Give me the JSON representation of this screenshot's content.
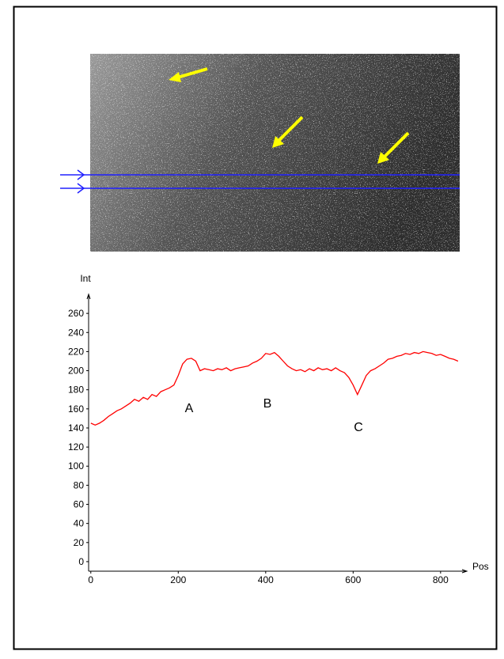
{
  "chart_data": {
    "type": "line",
    "x_label": "Pos",
    "y_label": "Int",
    "color": "#ff0000",
    "x": [
      0,
      10,
      20,
      30,
      40,
      50,
      60,
      70,
      80,
      90,
      100,
      110,
      120,
      130,
      140,
      150,
      160,
      170,
      180,
      190,
      200,
      210,
      220,
      230,
      240,
      250,
      260,
      270,
      280,
      290,
      300,
      310,
      320,
      330,
      340,
      350,
      360,
      370,
      380,
      390,
      400,
      410,
      420,
      430,
      440,
      450,
      460,
      470,
      480,
      490,
      500,
      510,
      520,
      530,
      540,
      550,
      560,
      570,
      580,
      590,
      600,
      610,
      620,
      630,
      640,
      650,
      660,
      670,
      680,
      690,
      700,
      710,
      720,
      730,
      740,
      750,
      760,
      770,
      780,
      790,
      800,
      810,
      820,
      830,
      840
    ],
    "values": [
      145,
      143,
      145,
      148,
      152,
      155,
      158,
      160,
      163,
      166,
      170,
      168,
      172,
      170,
      175,
      173,
      178,
      180,
      182,
      185,
      195,
      207,
      212,
      213,
      210,
      200,
      202,
      201,
      200,
      202,
      201,
      203,
      200,
      202,
      203,
      204,
      205,
      208,
      210,
      213,
      218,
      217,
      219,
      215,
      210,
      205,
      202,
      200,
      201,
      199,
      202,
      200,
      203,
      201,
      202,
      200,
      203,
      200,
      198,
      193,
      185,
      175,
      185,
      195,
      200,
      202,
      205,
      208,
      212,
      213,
      215,
      216,
      218,
      217,
      219,
      218,
      220,
      219,
      218,
      216,
      217,
      215,
      213,
      212,
      210
    ],
    "xlim": [
      -5,
      860
    ],
    "ylim": [
      -10,
      280
    ],
    "xticks": [
      0,
      200,
      400,
      600,
      800
    ],
    "yticks": [
      0,
      20,
      40,
      60,
      80,
      100,
      120,
      140,
      160,
      180,
      200,
      220,
      240,
      260
    ],
    "annotations": [
      "A",
      "B",
      "C"
    ]
  }
}
